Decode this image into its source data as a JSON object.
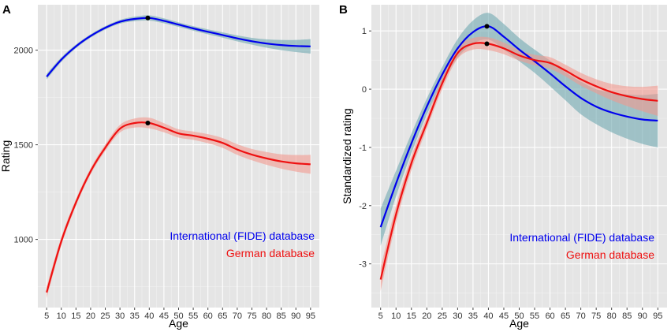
{
  "chart_data": [
    {
      "type": "line",
      "panel_label": "A",
      "xlabel": "Age",
      "ylabel": "Rating",
      "xlim": [
        2,
        98
      ],
      "ylim": [
        640,
        2240
      ],
      "xticks": [
        5,
        10,
        15,
        20,
        25,
        30,
        35,
        40,
        45,
        50,
        55,
        60,
        65,
        70,
        75,
        80,
        85,
        90,
        95
      ],
      "yticks": [
        1000,
        1500,
        2000
      ],
      "legend_position": "bottom-right",
      "series": [
        {
          "name": "International (FIDE) database",
          "color": "#0000ee",
          "band_color": "#6fa8b0",
          "x": [
            5,
            10,
            15,
            20,
            25,
            30,
            35,
            40,
            45,
            50,
            55,
            60,
            65,
            70,
            75,
            80,
            85,
            90,
            95
          ],
          "y": [
            1860,
            1950,
            2020,
            2075,
            2118,
            2150,
            2165,
            2170,
            2155,
            2135,
            2115,
            2097,
            2080,
            2062,
            2047,
            2035,
            2027,
            2022,
            2020
          ],
          "band": [
            15,
            12,
            10,
            9,
            9,
            10,
            12,
            14,
            13,
            12,
            12,
            13,
            14,
            16,
            18,
            22,
            27,
            32,
            38
          ],
          "peak": {
            "x": 39.5,
            "y": 2170
          }
        },
        {
          "name": "German database",
          "color": "#ee1111",
          "band_color": "#f29a90",
          "x": [
            5,
            10,
            15,
            20,
            25,
            30,
            35,
            40,
            45,
            50,
            55,
            60,
            65,
            70,
            75,
            80,
            85,
            90,
            95
          ],
          "y": [
            720,
            990,
            1195,
            1360,
            1485,
            1585,
            1615,
            1615,
            1590,
            1560,
            1548,
            1532,
            1510,
            1475,
            1448,
            1428,
            1412,
            1402,
            1397
          ],
          "band": [
            30,
            22,
            18,
            16,
            17,
            20,
            24,
            28,
            24,
            22,
            22,
            24,
            26,
            28,
            30,
            34,
            38,
            44,
            50
          ],
          "peak": {
            "x": 39.5,
            "y": 1615
          }
        }
      ]
    },
    {
      "type": "line",
      "panel_label": "B",
      "xlabel": "Age",
      "ylabel": "Standardized rating",
      "xlim": [
        2,
        98
      ],
      "ylim": [
        -3.75,
        1.45
      ],
      "xticks": [
        5,
        10,
        15,
        20,
        25,
        30,
        35,
        40,
        45,
        50,
        55,
        60,
        65,
        70,
        75,
        80,
        85,
        90,
        95
      ],
      "yticks": [
        -3,
        -2,
        -1,
        0,
        1
      ],
      "legend_position": "bottom-right",
      "series": [
        {
          "name": "International (FIDE) database",
          "color": "#0000ee",
          "band_color": "#6fa8b0",
          "x": [
            5,
            10,
            15,
            20,
            25,
            30,
            35,
            40,
            45,
            50,
            55,
            60,
            65,
            70,
            75,
            80,
            85,
            90,
            95
          ],
          "y": [
            -2.37,
            -1.62,
            -0.93,
            -0.3,
            0.25,
            0.7,
            0.98,
            1.08,
            0.9,
            0.68,
            0.48,
            0.27,
            0.05,
            -0.15,
            -0.3,
            -0.4,
            -0.47,
            -0.52,
            -0.54
          ],
          "band": [
            0.32,
            0.22,
            0.17,
            0.14,
            0.13,
            0.16,
            0.2,
            0.23,
            0.22,
            0.2,
            0.2,
            0.22,
            0.24,
            0.28,
            0.3,
            0.34,
            0.38,
            0.42,
            0.46
          ],
          "peak": {
            "x": 39.5,
            "y": 1.08
          }
        },
        {
          "name": "German database",
          "color": "#ee1111",
          "band_color": "#f29a90",
          "x": [
            5,
            10,
            15,
            20,
            25,
            30,
            35,
            40,
            45,
            50,
            55,
            60,
            65,
            70,
            75,
            80,
            85,
            90,
            95
          ],
          "y": [
            -3.27,
            -2.15,
            -1.27,
            -0.58,
            0.1,
            0.62,
            0.78,
            0.78,
            0.7,
            0.58,
            0.5,
            0.45,
            0.32,
            0.17,
            0.05,
            -0.05,
            -0.12,
            -0.17,
            -0.2
          ],
          "band": [
            0.2,
            0.15,
            0.12,
            0.1,
            0.1,
            0.1,
            0.1,
            0.11,
            0.1,
            0.09,
            0.09,
            0.1,
            0.1,
            0.11,
            0.12,
            0.14,
            0.17,
            0.21,
            0.26
          ],
          "peak": {
            "x": 39.5,
            "y": 0.78
          }
        }
      ]
    }
  ]
}
